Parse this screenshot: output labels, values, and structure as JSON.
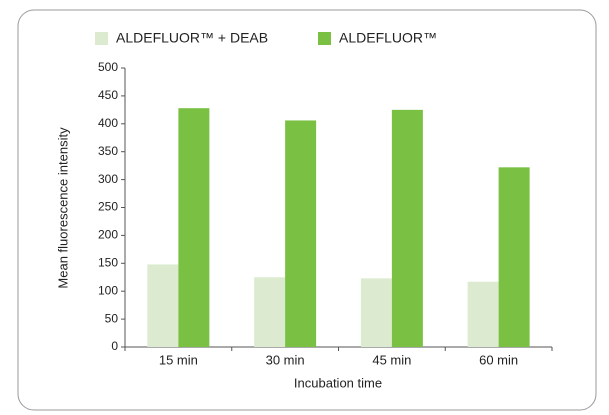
{
  "chart_data": {
    "type": "bar",
    "xlabel": "Incubation time",
    "ylabel": "Mean fluorescence intensity",
    "categories": [
      "15 min",
      "30 min",
      "45 min",
      "60 min"
    ],
    "series": [
      {
        "name": "ALDEFLUOR™ + DEAB",
        "color": "#dcebd0",
        "values": [
          148,
          125,
          123,
          117
        ]
      },
      {
        "name": "ALDEFLUOR™",
        "color": "#7ac143",
        "values": [
          428,
          406,
          425,
          322
        ]
      }
    ],
    "ylim": [
      0,
      500
    ],
    "yticks": [
      0,
      50,
      100,
      150,
      200,
      250,
      300,
      350,
      400,
      450,
      500
    ],
    "grid": false,
    "legend": "top"
  }
}
